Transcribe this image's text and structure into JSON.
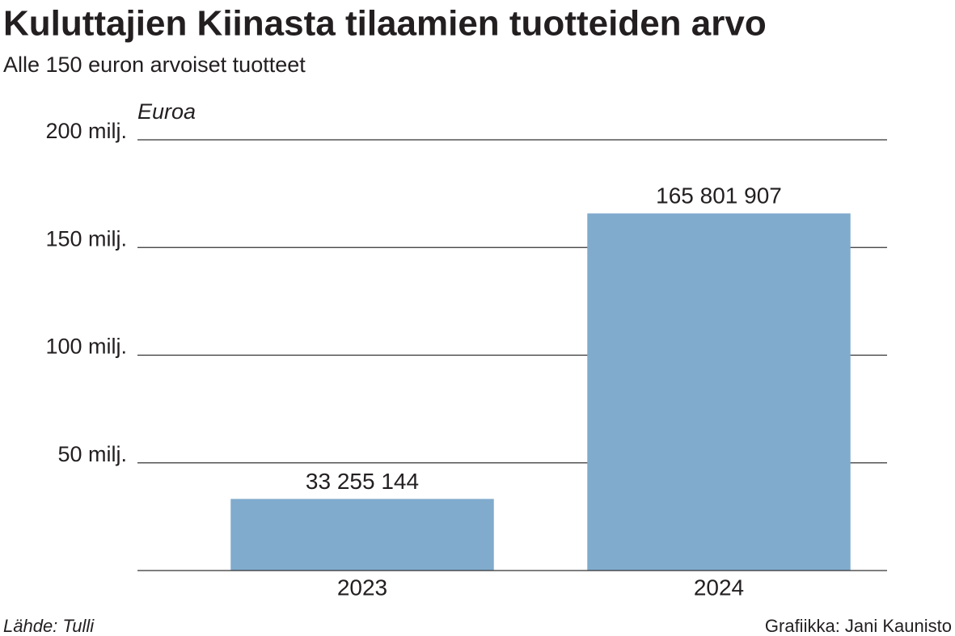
{
  "chart_data": {
    "type": "bar",
    "title": "Kuluttajien Kiinasta tilaamien tuotteiden arvo",
    "subtitle": "Alle 150 euron arvoiset tuotteet",
    "y_label": "Euroa",
    "categories": [
      "2023",
      "2024"
    ],
    "values": [
      33255144,
      165801907
    ],
    "value_labels": [
      "33 255 144",
      "165 801 907"
    ],
    "color": "#80abcd",
    "ylim": [
      0,
      200000000
    ],
    "yticks": [
      {
        "value": 50000000,
        "label": "50 milj."
      },
      {
        "value": 100000000,
        "label": "100 milj."
      },
      {
        "value": 150000000,
        "label": "150 milj."
      },
      {
        "value": 200000000,
        "label": "200 milj."
      }
    ],
    "grid": true,
    "source": "Lähde: Tulli",
    "credit": "Grafiikka: Jani Kaunisto"
  }
}
